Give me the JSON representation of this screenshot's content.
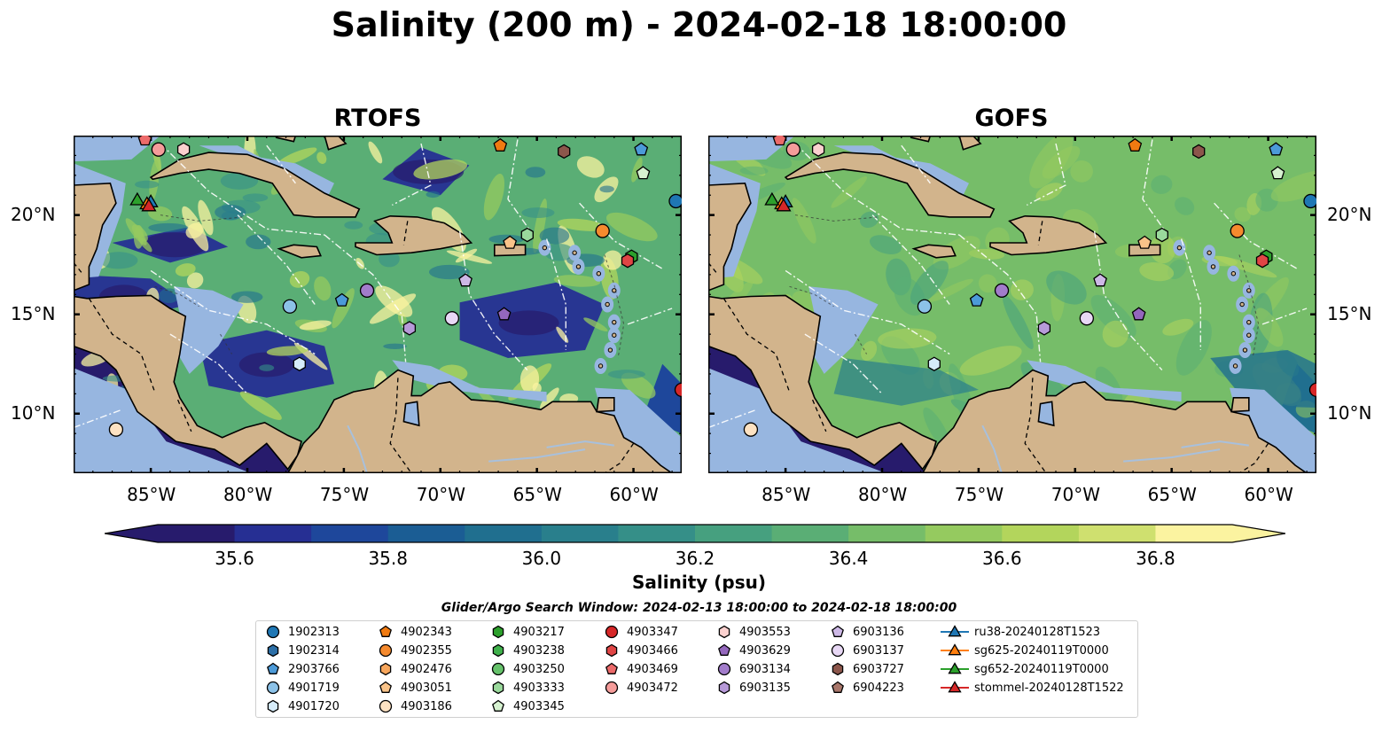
{
  "title": "Salinity (200 m) - 2024-02-18 18:00:00",
  "panels": [
    {
      "title": "RTOFS",
      "style": "rtofs"
    },
    {
      "title": "GOFS",
      "style": "gofs"
    }
  ],
  "map_extent": {
    "lon_min": -89,
    "lon_max": -57.5,
    "lat_min": 7,
    "lat_max": 24
  },
  "lat_ticks": [
    {
      "value": 20,
      "label": "20°N"
    },
    {
      "value": 15,
      "label": "15°N"
    },
    {
      "value": 10,
      "label": "10°N"
    }
  ],
  "lon_ticks": [
    {
      "value": -85,
      "label": "85°W"
    },
    {
      "value": -80,
      "label": "80°W"
    },
    {
      "value": -75,
      "label": "75°W"
    },
    {
      "value": -70,
      "label": "70°W"
    },
    {
      "value": -65,
      "label": "65°W"
    },
    {
      "value": -60,
      "label": "60°W"
    }
  ],
  "colorbar": {
    "label": "Salinity (psu)",
    "min": 35.5,
    "max": 36.9,
    "step": 0.1,
    "ticks": [
      "35.6",
      "35.8",
      "36.0",
      "36.2",
      "36.4",
      "36.6",
      "36.8"
    ],
    "extend": "both",
    "colors": [
      "#271b6c",
      "#262f93",
      "#1e479b",
      "#1b5d94",
      "#206f8f",
      "#297f8c",
      "#358f88",
      "#46a07f",
      "#5aae75",
      "#76bd69",
      "#95ca5f",
      "#b3d55c",
      "#cfe06f",
      "#fbf3a0"
    ]
  },
  "search_window": "Glider/Argo Search Window: 2024-02-13 18:00:00 to 2024-02-18 18:00:00",
  "chart_data": {
    "type": "scatter",
    "title": "Salinity (200 m) - 2024-02-18 18:00:00",
    "xlabel": "",
    "ylabel": "",
    "xlim": [
      -89,
      -57.5
    ],
    "ylim": [
      7,
      24
    ],
    "series": [
      {
        "name": "1902313",
        "marker": "circle",
        "color": "#1f77b4",
        "x": [
          -57.8
        ],
        "y": [
          20.7
        ]
      },
      {
        "name": "1902314",
        "marker": "hexagon",
        "color": "#2c6fa7",
        "x": [],
        "y": []
      },
      {
        "name": "2903766",
        "marker": "pentagon",
        "color": "#4c9ad8",
        "x": [
          -75.1,
          -59.6
        ],
        "y": [
          15.7,
          23.3
        ]
      },
      {
        "name": "4901719",
        "marker": "circle",
        "color": "#8cc2e8",
        "x": [
          -77.8
        ],
        "y": [
          15.4
        ]
      },
      {
        "name": "4901720",
        "marker": "hexagon",
        "color": "#d6ecfa",
        "x": [
          -77.3
        ],
        "y": [
          12.5
        ]
      },
      {
        "name": "4902343",
        "marker": "pentagon",
        "color": "#f07a11",
        "x": [
          -66.9
        ],
        "y": [
          23.5
        ]
      },
      {
        "name": "4902355",
        "marker": "circle",
        "color": "#f58a2e",
        "x": [
          -61.6
        ],
        "y": [
          19.2
        ]
      },
      {
        "name": "4902476",
        "marker": "hexagon",
        "color": "#f7a65c",
        "x": [],
        "y": []
      },
      {
        "name": "4903051",
        "marker": "pentagon",
        "color": "#f9c389",
        "x": [
          -66.4
        ],
        "y": [
          18.6
        ]
      },
      {
        "name": "4903186",
        "marker": "circle",
        "color": "#fde2c2",
        "x": [
          -86.8
        ],
        "y": [
          9.2
        ]
      },
      {
        "name": "4903217",
        "marker": "hexagon",
        "color": "#2ca02c",
        "x": [
          -60.1
        ],
        "y": [
          17.9
        ]
      },
      {
        "name": "4903238",
        "marker": "hexagon",
        "color": "#3fb14b",
        "x": [],
        "y": []
      },
      {
        "name": "4903250",
        "marker": "circle",
        "color": "#66c26b",
        "x": [],
        "y": []
      },
      {
        "name": "4903333",
        "marker": "hexagon",
        "color": "#9ad99c",
        "x": [
          -65.5
        ],
        "y": [
          19.0
        ]
      },
      {
        "name": "4903345",
        "marker": "pentagon",
        "color": "#d6f2d0",
        "x": [
          -59.5
        ],
        "y": [
          22.1
        ]
      },
      {
        "name": "4903347",
        "marker": "circle",
        "color": "#d62728",
        "x": [
          -57.5
        ],
        "y": [
          11.2
        ]
      },
      {
        "name": "4903466",
        "marker": "hexagon",
        "color": "#e04545",
        "x": [
          -60.3
        ],
        "y": [
          17.7
        ]
      },
      {
        "name": "4903469",
        "marker": "pentagon",
        "color": "#ec6a6a",
        "x": [
          -85.3
        ],
        "y": [
          23.8
        ]
      },
      {
        "name": "4903472",
        "marker": "circle",
        "color": "#f59c9a",
        "x": [
          -84.6
        ],
        "y": [
          23.3
        ]
      },
      {
        "name": "4903553",
        "marker": "hexagon",
        "color": "#fbd1cf",
        "x": [
          -83.3
        ],
        "y": [
          23.3
        ]
      },
      {
        "name": "4903629",
        "marker": "pentagon",
        "color": "#9467bd",
        "x": [
          -66.7
        ],
        "y": [
          15.0
        ]
      },
      {
        "name": "6903134",
        "marker": "circle",
        "color": "#a27ccb",
        "x": [
          -73.8
        ],
        "y": [
          16.2
        ]
      },
      {
        "name": "6903135",
        "marker": "hexagon",
        "color": "#b79ad9",
        "x": [
          -71.6
        ],
        "y": [
          14.3
        ]
      },
      {
        "name": "6903136",
        "marker": "pentagon",
        "color": "#cdb8e6",
        "x": [
          -68.7
        ],
        "y": [
          16.7
        ]
      },
      {
        "name": "6903137",
        "marker": "circle",
        "color": "#e8d8f5",
        "x": [
          -69.4
        ],
        "y": [
          14.8
        ]
      },
      {
        "name": "6903727",
        "marker": "hexagon",
        "color": "#8c564b",
        "x": [
          -63.6
        ],
        "y": [
          23.2
        ]
      },
      {
        "name": "6904223",
        "marker": "pentagon",
        "color": "#a8766a",
        "x": [],
        "y": []
      },
      {
        "name": "ru38-20240128T1523",
        "marker": "triangle",
        "color": "#1f77b4",
        "line": true,
        "x": [
          -85.0
        ],
        "y": [
          20.7
        ]
      },
      {
        "name": "sg625-20240119T0000",
        "marker": "triangle",
        "color": "#ff7f0e",
        "line": true,
        "x": [
          -85.2
        ],
        "y": [
          20.6
        ]
      },
      {
        "name": "sg652-20240119T0000",
        "marker": "triangle",
        "color": "#2ca02c",
        "line": true,
        "x": [
          -85.7
        ],
        "y": [
          20.8
        ]
      },
      {
        "name": "stommel-20240128T1522",
        "marker": "triangle",
        "color": "#d62728",
        "line": true,
        "x": [
          -85.1
        ],
        "y": [
          20.5
        ]
      }
    ]
  }
}
